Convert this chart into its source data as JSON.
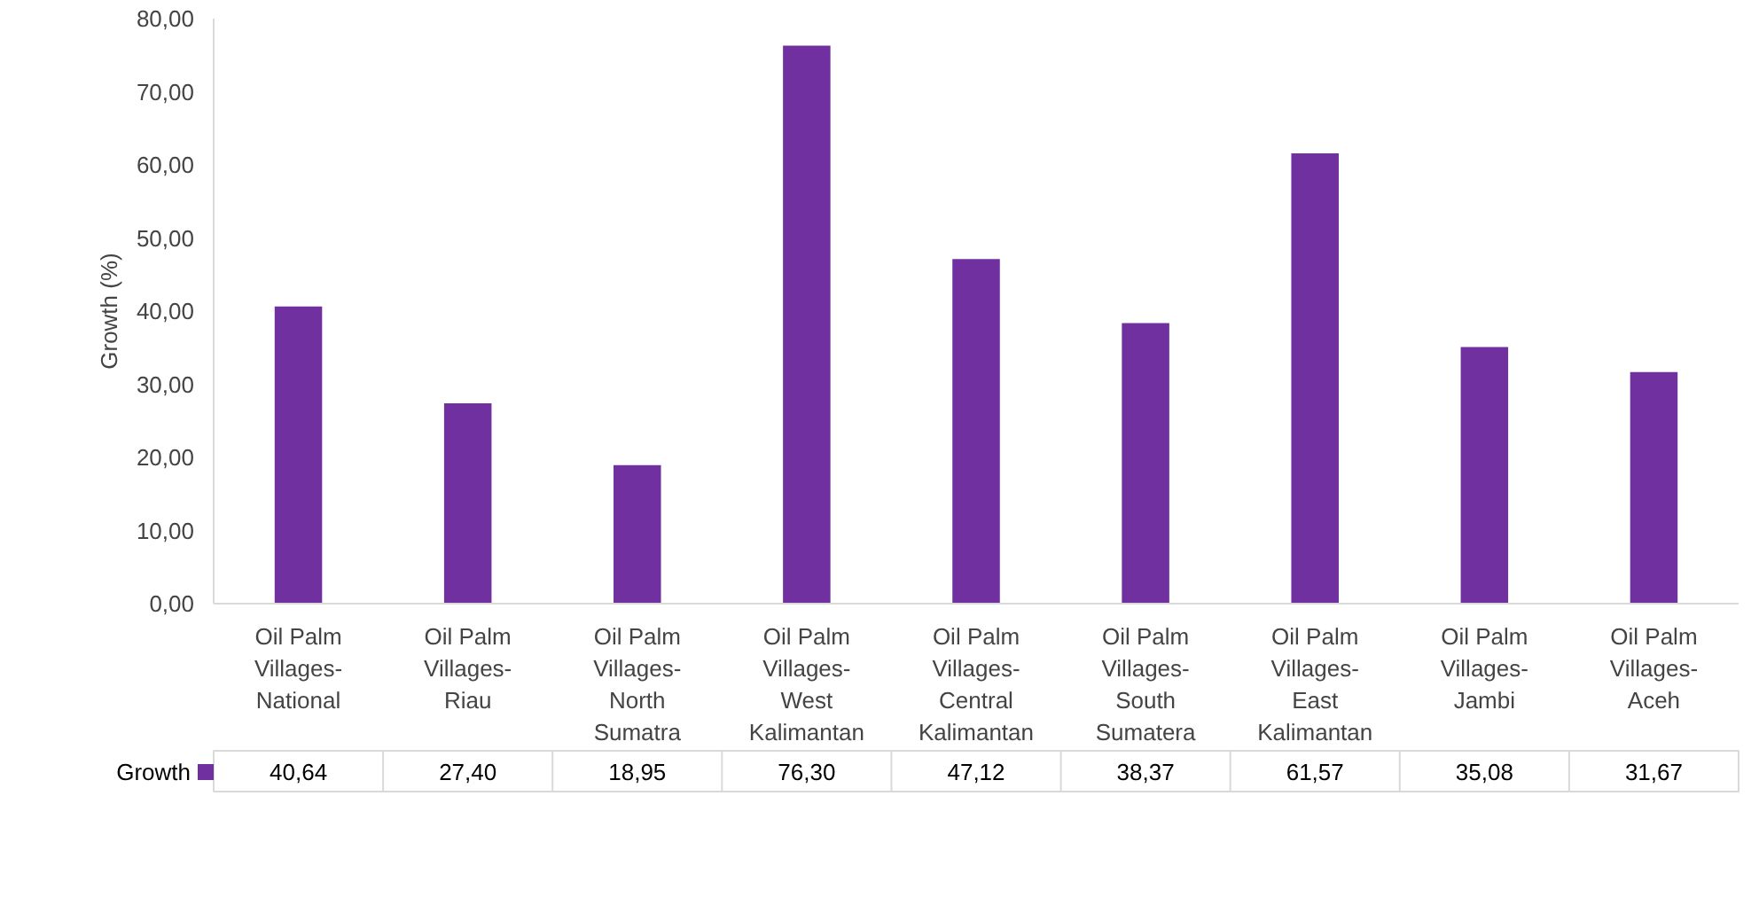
{
  "chart_data": {
    "type": "bar",
    "ylabel": "Growth (%)",
    "categories": [
      "Oil Palm Villages-National",
      "Oil Palm Villages-Riau",
      "Oil Palm Villages-North Sumatra",
      "Oil Palm Villages-West Kalimantan",
      "Oil Palm Villages-Central Kalimantan",
      "Oil Palm Villages-South Sumatera",
      "Oil Palm Villages-East Kalimantan",
      "Oil Palm Villages-Jambi",
      "Oil Palm Villages-Aceh"
    ],
    "series": [
      {
        "name": "Growth",
        "color": "#7030a0",
        "values": [
          40.64,
          27.4,
          18.95,
          76.3,
          47.12,
          38.37,
          61.57,
          35.08,
          31.67
        ],
        "value_labels": [
          "40,64",
          "27,40",
          "18,95",
          "76,30",
          "47,12",
          "38,37",
          "61,57",
          "35,08",
          "31,67"
        ]
      }
    ],
    "ylim": [
      0,
      80
    ],
    "yticks": [
      {
        "value": 0,
        "label": "0,00"
      },
      {
        "value": 10,
        "label": "10,00"
      },
      {
        "value": 20,
        "label": "20,00"
      },
      {
        "value": 30,
        "label": "30,00"
      },
      {
        "value": 40,
        "label": "40,00"
      },
      {
        "value": 50,
        "label": "50,00"
      },
      {
        "value": 60,
        "label": "60,00"
      },
      {
        "value": 70,
        "label": "70,00"
      },
      {
        "value": 80,
        "label": "80,00"
      }
    ],
    "legend": "bottom"
  }
}
